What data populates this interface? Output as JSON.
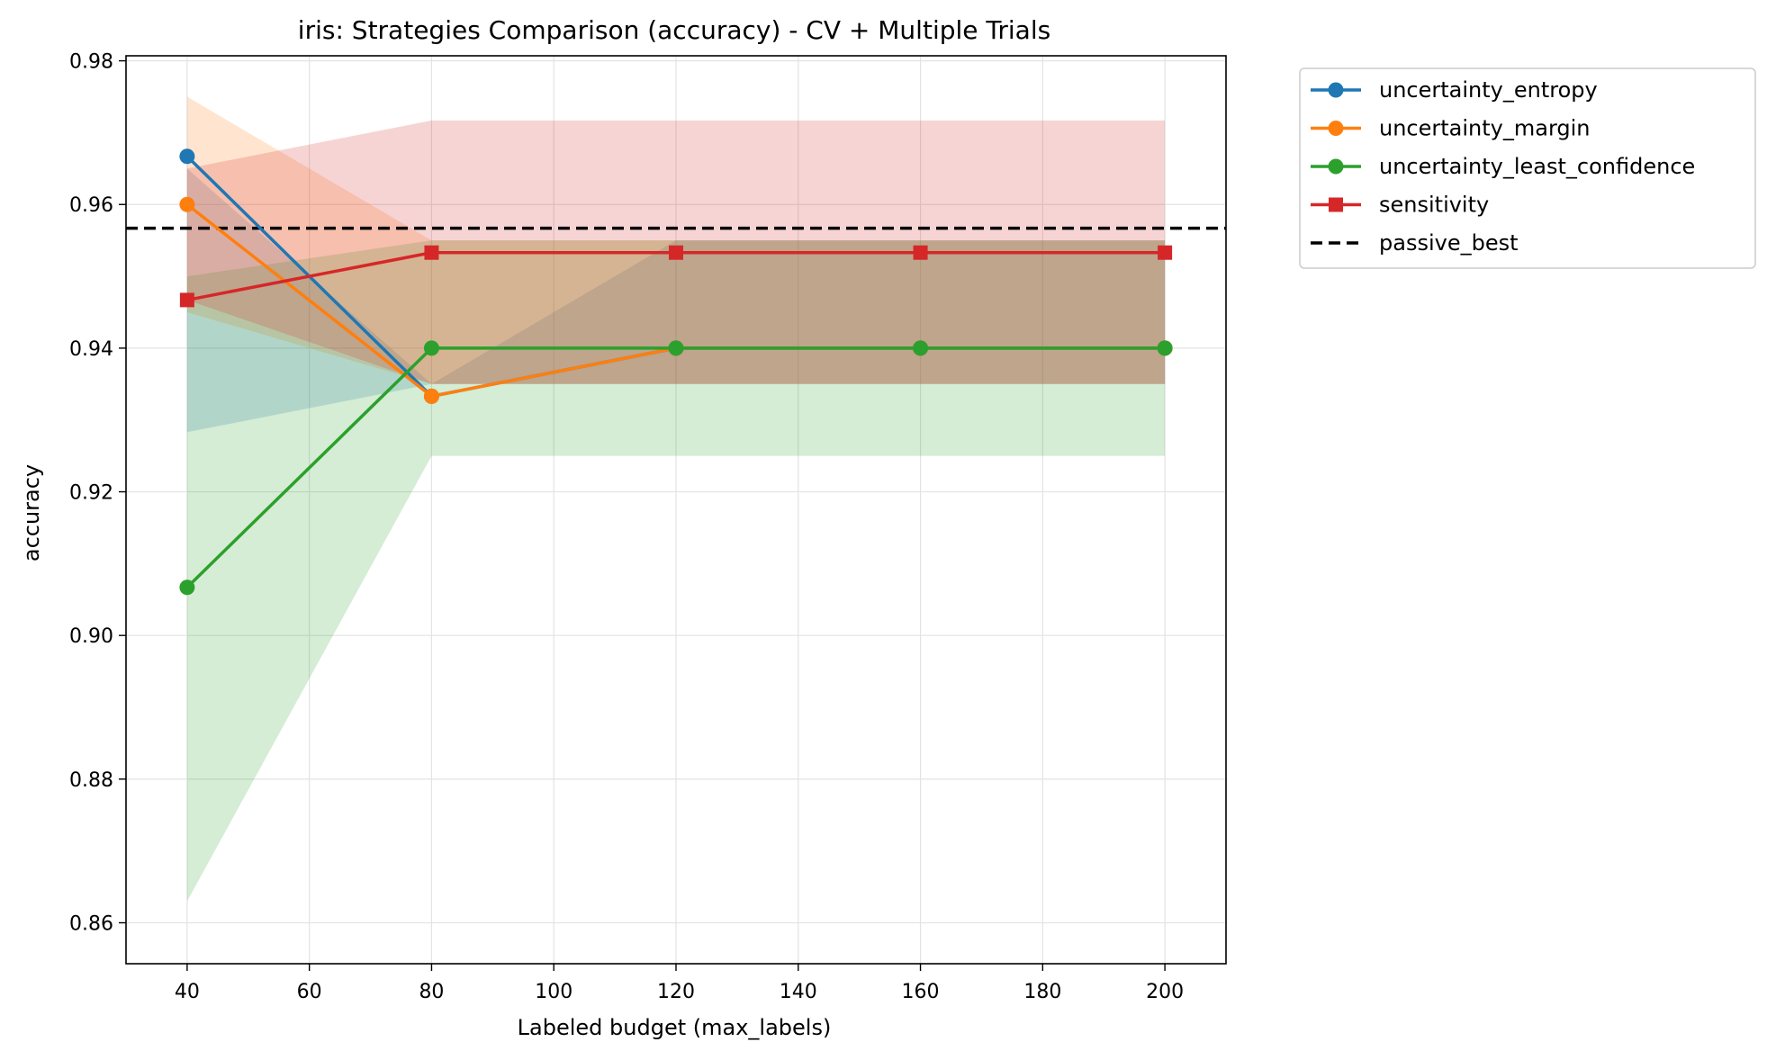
{
  "chart_data": {
    "type": "line",
    "title": "iris: Strategies Comparison (accuracy) - CV + Multiple Trials",
    "xlabel": "Labeled budget (max_labels)",
    "ylabel": "accuracy",
    "x": [
      40,
      80,
      120,
      160,
      200
    ],
    "xlim": [
      30,
      210
    ],
    "ylim": [
      0.8543,
      0.9807
    ],
    "xticks": [
      40,
      60,
      80,
      100,
      120,
      140,
      160,
      180,
      200
    ],
    "yticks": [
      0.86,
      0.88,
      0.9,
      0.92,
      0.94,
      0.96,
      0.98
    ],
    "grid": true,
    "legend_position": "outside-top-right",
    "series": [
      {
        "name": "uncertainty_entropy",
        "color": "#1f77b4",
        "marker": "circle",
        "values": [
          0.9667,
          0.9333,
          0.94,
          0.94,
          0.94
        ],
        "band_low": [
          0.9283,
          0.935,
          0.935,
          0.935,
          0.935
        ],
        "band_high": [
          0.965,
          0.935,
          0.955,
          0.955,
          0.955
        ]
      },
      {
        "name": "uncertainty_margin",
        "color": "#ff7f0e",
        "marker": "circle",
        "values": [
          0.96,
          0.9333,
          0.94,
          0.94,
          0.94
        ],
        "band_low": [
          0.945,
          0.935,
          0.935,
          0.935,
          0.935
        ],
        "band_high": [
          0.975,
          0.955,
          0.955,
          0.955,
          0.955
        ]
      },
      {
        "name": "uncertainty_least_confidence",
        "color": "#2ca02c",
        "marker": "circle",
        "values": [
          0.9067,
          0.94,
          0.94,
          0.94,
          0.94
        ],
        "band_low": [
          0.863,
          0.925,
          0.925,
          0.925,
          0.925
        ],
        "band_high": [
          0.95,
          0.955,
          0.955,
          0.955,
          0.955
        ]
      },
      {
        "name": "sensitivity",
        "color": "#d62728",
        "marker": "square",
        "values": [
          0.9467,
          0.9533,
          0.9533,
          0.9533,
          0.9533
        ],
        "band_low": [
          0.9467,
          0.935,
          0.935,
          0.935,
          0.935
        ],
        "band_high": [
          0.965,
          0.9717,
          0.9717,
          0.9717,
          0.9717
        ]
      }
    ],
    "reference_line": {
      "name": "passive_best",
      "value": 0.9567,
      "color": "#000000",
      "style": "dashed"
    }
  }
}
